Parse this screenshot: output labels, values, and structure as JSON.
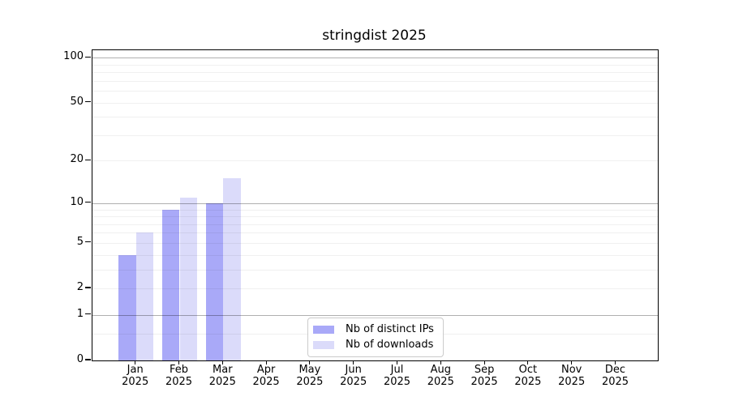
{
  "chart_data": {
    "type": "bar",
    "title": "stringdist 2025",
    "x_tick_labels": [
      "Jan",
      "Feb",
      "Mar",
      "Apr",
      "May",
      "Jun",
      "Jul",
      "Aug",
      "Sep",
      "Oct",
      "Nov",
      "Dec"
    ],
    "x_year_label": "2025",
    "categories": [
      "Jan 2025",
      "Feb 2025",
      "Mar 2025",
      "Apr 2025",
      "May 2025",
      "Jun 2025",
      "Jul 2025",
      "Aug 2025",
      "Sep 2025",
      "Oct 2025",
      "Nov 2025",
      "Dec 2025"
    ],
    "series": [
      {
        "name": "Nb of distinct IPs",
        "color": "#a9a9f8",
        "values": [
          4,
          9,
          10,
          0,
          0,
          0,
          0,
          0,
          0,
          0,
          0,
          0
        ]
      },
      {
        "name": "Nb of downloads",
        "color": "#dbdbfa",
        "values": [
          6,
          11,
          15,
          0,
          0,
          0,
          0,
          0,
          0,
          0,
          0,
          0
        ]
      }
    ],
    "y_axis": {
      "scale": "log1p",
      "tick_values": [
        0,
        1,
        2,
        5,
        10,
        20,
        50,
        100
      ],
      "tick_labels": [
        "0",
        "1",
        "2",
        "5",
        "10",
        "20",
        "50",
        "100"
      ],
      "major_gridline_values": [
        1,
        10,
        100
      ],
      "minor_gridline_values": [
        0.5,
        2,
        3,
        4,
        5,
        6,
        7,
        8,
        9,
        20,
        30,
        40,
        50,
        60,
        70,
        80,
        90
      ],
      "ylim": [
        0,
        112
      ]
    },
    "legend": {
      "position": "lower center",
      "entries": [
        "Nb of distinct IPs",
        "Nb of downloads"
      ]
    },
    "grid": true,
    "colors": {
      "distinct_ips_bar": "#a9a9f8",
      "downloads_bar": "#dbdbfa",
      "major_grid": "#b0b0b0",
      "minor_grid": "#ebebeb",
      "axis": "#000000",
      "background": "#ffffff"
    }
  }
}
